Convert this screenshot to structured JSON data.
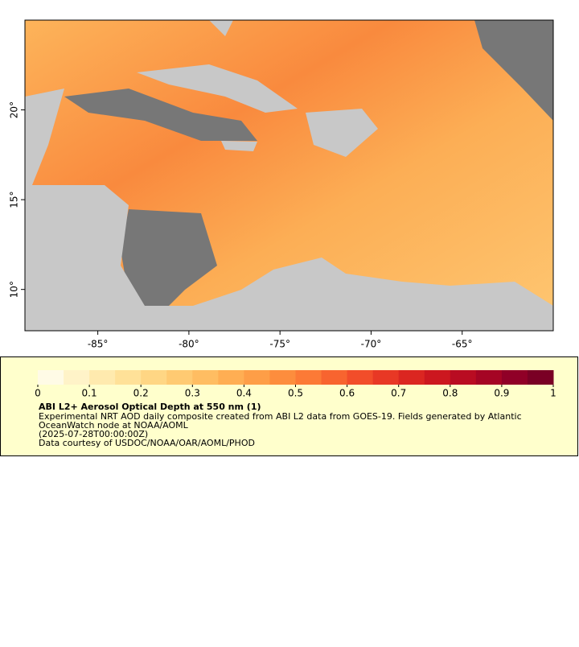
{
  "map": {
    "xlim": [
      -89,
      -60
    ],
    "ylim": [
      7.7,
      25
    ],
    "xticks": [
      {
        "value": -85,
        "label": "-85°"
      },
      {
        "value": -80,
        "label": "-80°"
      },
      {
        "value": -75,
        "label": "-75°"
      },
      {
        "value": -70,
        "label": "-70°"
      },
      {
        "value": -65,
        "label": "-65°"
      }
    ],
    "yticks": [
      {
        "value": 10,
        "label": "10°"
      },
      {
        "value": 15,
        "label": "15°"
      },
      {
        "value": 20,
        "label": "20°"
      }
    ]
  },
  "colorbar": {
    "range": [
      0,
      1
    ],
    "ticks": [
      0,
      0.1,
      0.2,
      0.3,
      0.4,
      0.5,
      0.6,
      0.7,
      0.8,
      0.9,
      1
    ],
    "colors": [
      "#fffbe6",
      "#fff3c8",
      "#ffeaae",
      "#ffe198",
      "#ffd684",
      "#ffca72",
      "#ffbd62",
      "#ffae53",
      "#fe9e47",
      "#fd8d3d",
      "#fc7a36",
      "#f8642f",
      "#f24d2a",
      "#e83825",
      "#db2621",
      "#cc171f",
      "#b90c22",
      "#a50524",
      "#900027",
      "#7a0025"
    ],
    "title": "ABI L2+ Aerosol Optical Depth at 550 nm (1)",
    "lines": [
      "Experimental NRT AOD daily composite created from ABI L2 data from GOES-19. Fields generated by Atlantic",
      "OceanWatch node at NOAA/AOML",
      "(2025-07-28T00:00:00Z)",
      "Data courtesy of USDOC/NOAA/OAR/AOML/PHOD"
    ]
  }
}
